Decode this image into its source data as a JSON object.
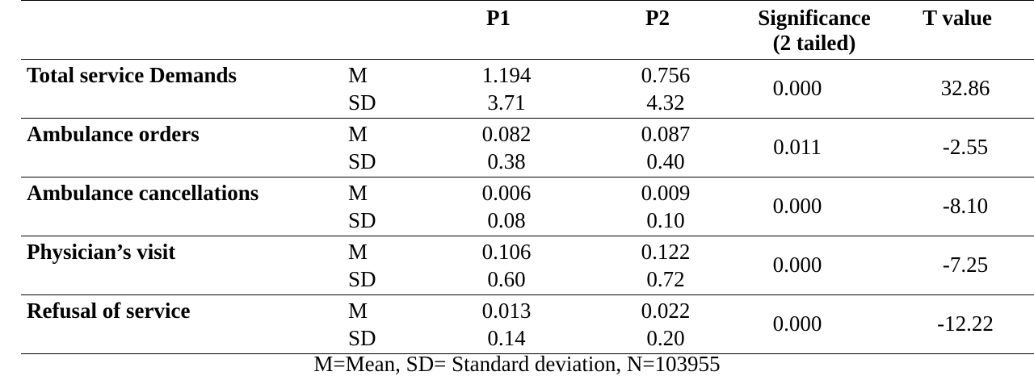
{
  "table": {
    "headers": {
      "p1": "P1",
      "p2": "P2",
      "significance_line1": "Significance",
      "significance_line2": "(2 tailed)",
      "t_value": "T value"
    },
    "rows": [
      {
        "label": "Total service Demands",
        "m_label": "M",
        "sd_label": "SD",
        "p1_m": "1.194",
        "p1_sd": "3.71",
        "p2_m": "0.756",
        "p2_sd": "4.32",
        "significance": "0.000",
        "t_value": "32.86"
      },
      {
        "label": "Ambulance orders",
        "m_label": "M",
        "sd_label": "SD",
        "p1_m": "0.082",
        "p1_sd": "0.38",
        "p2_m": "0.087",
        "p2_sd": "0.40",
        "significance": "0.011",
        "t_value": "-2.55"
      },
      {
        "label": "Ambulance cancellations",
        "m_label": "M",
        "sd_label": "SD",
        "p1_m": "0.006",
        "p1_sd": "0.08",
        "p2_m": "0.009",
        "p2_sd": "0.10",
        "significance": "0.000",
        "t_value": "-8.10"
      },
      {
        "label": "Physician’s visit",
        "m_label": "M",
        "sd_label": "SD",
        "p1_m": "0.106",
        "p1_sd": "0.60",
        "p2_m": "0.122",
        "p2_sd": "0.72",
        "significance": "0.000",
        "t_value": "-7.25"
      },
      {
        "label": "Refusal of service",
        "m_label": "M",
        "sd_label": "SD",
        "p1_m": "0.013",
        "p1_sd": "0.14",
        "p2_m": "0.022",
        "p2_sd": "0.20",
        "significance": "0.000",
        "t_value": "-12.22"
      }
    ]
  },
  "footnote": "M=Mean, SD= Standard deviation, N=103955"
}
